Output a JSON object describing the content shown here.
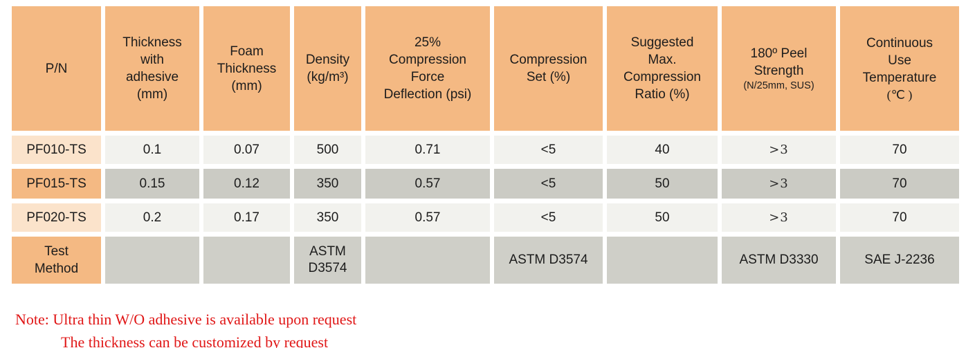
{
  "table": {
    "headers": [
      {
        "main": "P/N"
      },
      {
        "main": "Thickness\nwith\nadhesive\n(mm)"
      },
      {
        "main": "Foam\nThickness\n(mm)"
      },
      {
        "main": "Density\n(kg/m³)"
      },
      {
        "main": "25%\nCompression\nForce\nDeflection (psi)"
      },
      {
        "main": "Compression\nSet (%)"
      },
      {
        "main": "Suggested\nMax.\nCompression\nRatio (%)"
      },
      {
        "main": "180º Peel\nStrength",
        "sub": "(N/25mm, SUS)"
      },
      {
        "main": "Continuous\nUse\nTemperature",
        "sub": "(℃ )"
      }
    ],
    "rows": [
      {
        "pn": "PF010-TS",
        "values": [
          "0.1",
          "0.07",
          "500",
          "0.71",
          "<5",
          "40",
          ">3",
          "70"
        ]
      },
      {
        "pn": "PF015-TS",
        "values": [
          "0.15",
          "0.12",
          "350",
          "0.57",
          "<5",
          "50",
          ">3",
          "70"
        ]
      },
      {
        "pn": "PF020-TS",
        "values": [
          "0.2",
          "0.17",
          "350",
          "0.57",
          "<5",
          "50",
          ">3",
          "70"
        ]
      }
    ],
    "test_method": {
      "label": "Test\nMethod",
      "values": [
        "",
        "",
        "ASTM\nD3574",
        "",
        "ASTM D3574",
        "",
        "ASTM D3330",
        "SAE J-2236"
      ]
    }
  },
  "note": {
    "line1": "Note: Ultra thin W/O adhesive is available upon request",
    "line2": "The thickness can be customized by request"
  },
  "colors": {
    "header_bg": "#F4B983",
    "pn_light_bg": "#FBE3CB",
    "row_light_bg": "#F2F2EE",
    "row_dark_bg": "#CBCBC4",
    "test_row_bg": "#CFCFC8",
    "note_text": "#E01616"
  }
}
